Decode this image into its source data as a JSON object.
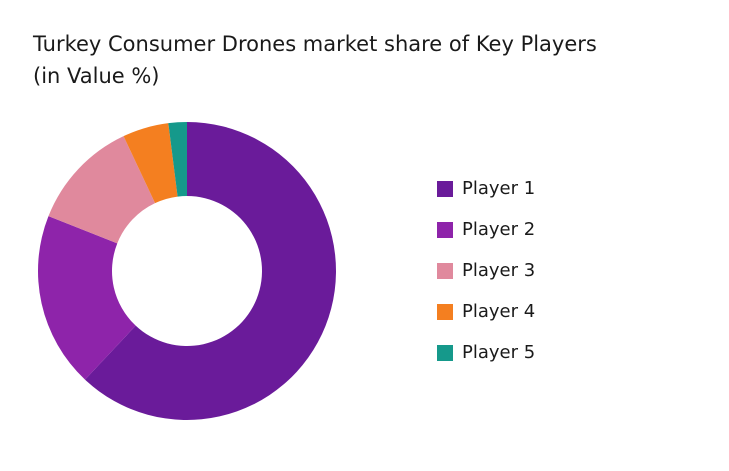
{
  "chart_data": {
    "type": "donut",
    "title": "Turkey Consumer Drones market share of Key Players (in Value %)",
    "categories": [
      "Player 1",
      "Player 2",
      "Player 3",
      "Player 4",
      "Player 5"
    ],
    "values": [
      62,
      19,
      12,
      5,
      2
    ],
    "colors": [
      "#6a1b9a",
      "#8e24aa",
      "#e0899d",
      "#f47f20",
      "#15998b"
    ],
    "legend": "right"
  }
}
